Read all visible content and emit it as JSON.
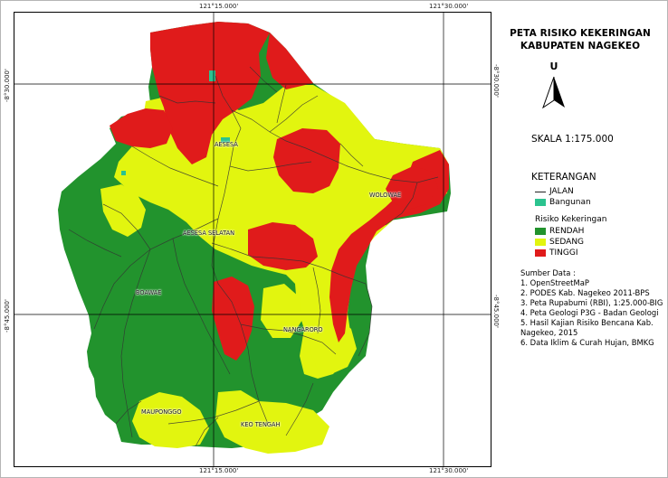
{
  "title": {
    "line1": "PETA RISIKO KEKERINGAN",
    "line2": "KABUPATEN NAGEKEO"
  },
  "north": {
    "letter": "U"
  },
  "scale": "SKALA 1:175.000",
  "legend": {
    "title": "KETERANGAN",
    "items": [
      {
        "label": "JALAN",
        "symbol": "line",
        "color": "#333333"
      },
      {
        "label": "Bangunan",
        "symbol": "fill",
        "color": "#2bc38f"
      }
    ],
    "risk_title": "Risiko Kekeringan",
    "risk_items": [
      {
        "label": "RENDAH",
        "color": "#22932d"
      },
      {
        "label": "SEDANG",
        "color": "#e2f50f"
      },
      {
        "label": "TINGGI",
        "color": "#e01b1b"
      }
    ]
  },
  "sources": {
    "heading": "Sumber Data :",
    "lines": [
      "1. OpenStreetMaP",
      "2. PODES Kab. Nagekeo 2011-BPS",
      "3. Peta Rupabumi (RBI), 1:25.000-BIG",
      "4. Peta Geologi P3G - Badan Geologi",
      "5. Hasil Kajian Risiko Bencana Kab.",
      "Nagekeo, 2015",
      "6. Data Iklim & Curah Hujan, BMKG"
    ]
  },
  "coordinates": {
    "top": [
      "121°15.000'",
      "121°30.000'"
    ],
    "bottom": [
      "121°15.000'",
      "121°30.000'"
    ],
    "left": [
      "-8°30.000'",
      "-8°45.000'"
    ],
    "right": [
      "-8°30.000'",
      "-8°45.000'"
    ]
  },
  "places": [
    "AESESA",
    "AESESA SELATAN",
    "WOLOWAE",
    "BOAWAE",
    "NANGARORO",
    "MAUPONGGO",
    "KEO TENGAH"
  ],
  "colors": {
    "low": "#22932d",
    "medium": "#e2f50f",
    "high": "#e01b1b",
    "building": "#2bc38f",
    "road": "#333333"
  }
}
